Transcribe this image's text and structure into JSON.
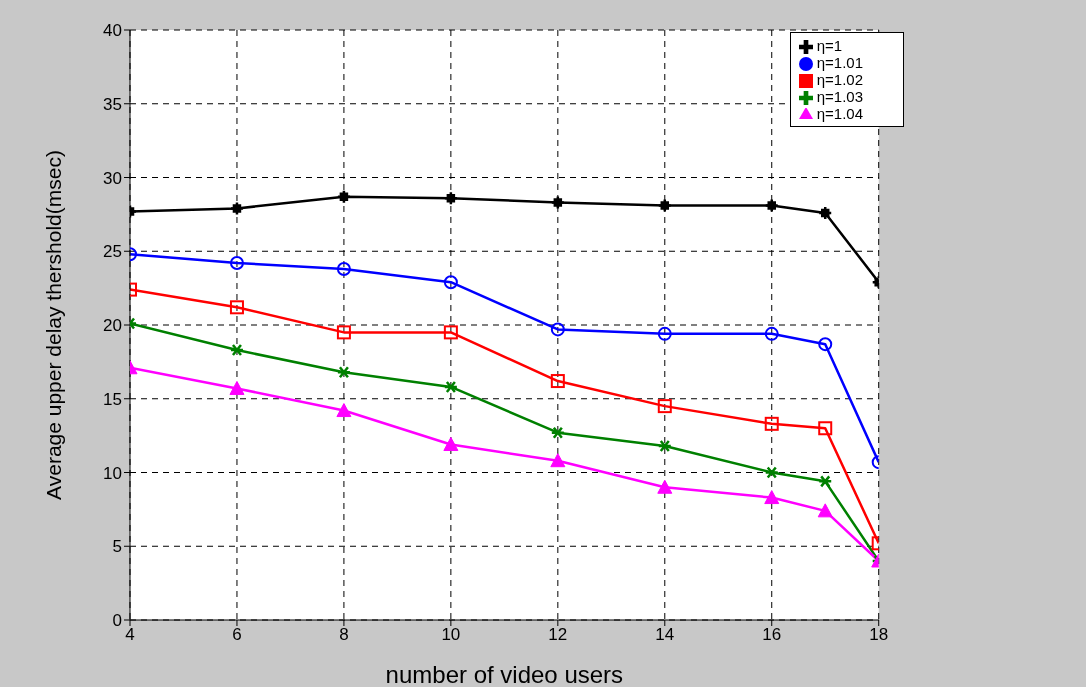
{
  "chart_data": {
    "type": "line",
    "xlabel": "number of video users",
    "ylabel": "Average upper delay thershold(msec)",
    "x": [
      4,
      6,
      8,
      10,
      12,
      14,
      16,
      17,
      18
    ],
    "series": [
      {
        "name": "η=1",
        "color": "#000000",
        "marker": "cross",
        "values": [
          27.7,
          27.9,
          28.7,
          28.6,
          28.3,
          28.1,
          28.1,
          27.6,
          22.9
        ]
      },
      {
        "name": "η=1.01",
        "color": "#0000ff",
        "marker": "circle",
        "values": [
          24.8,
          24.2,
          23.8,
          22.9,
          19.7,
          19.4,
          19.4,
          18.7,
          10.7
        ]
      },
      {
        "name": "η=1.02",
        "color": "#ff0000",
        "marker": "square",
        "values": [
          22.4,
          21.2,
          19.5,
          19.5,
          16.2,
          14.5,
          13.3,
          13.0,
          5.2
        ]
      },
      {
        "name": "η=1.03",
        "color": "#008000",
        "marker": "cross",
        "values": [
          20.1,
          18.3,
          16.8,
          15.8,
          12.7,
          11.8,
          10.0,
          9.4,
          4.0
        ]
      },
      {
        "name": "η=1.04",
        "color": "#ff00ff",
        "marker": "triangle",
        "values": [
          17.1,
          15.7,
          14.2,
          11.9,
          10.8,
          9.0,
          8.3,
          7.4,
          4.0
        ]
      }
    ],
    "xlim": [
      4,
      18
    ],
    "xticks": [
      4,
      6,
      8,
      10,
      12,
      14,
      16,
      18
    ],
    "ylim": [
      0,
      40
    ],
    "yticks": [
      0,
      5,
      10,
      15,
      20,
      25,
      30,
      35,
      40
    ],
    "grid": true,
    "legend": "top right",
    "line_style": "solid"
  }
}
